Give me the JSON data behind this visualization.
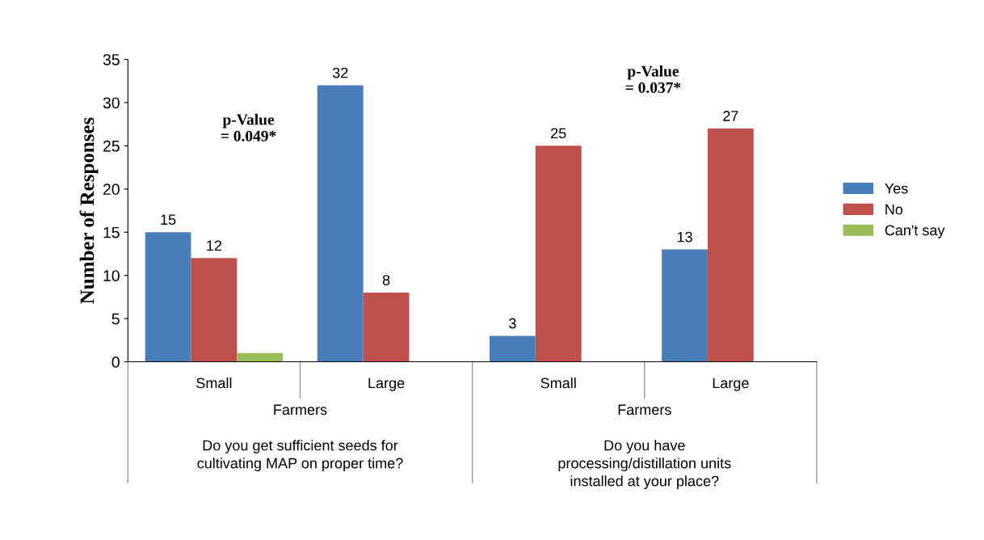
{
  "chart_data": {
    "type": "bar",
    "ylabel": "Number of Responses",
    "categories": [
      "Small",
      "Large",
      "Small",
      "Large"
    ],
    "series": [
      {
        "name": "Yes",
        "color": "#4a7ebb",
        "values": [
          15,
          32,
          3,
          13
        ],
        "value_labels": [
          "15",
          "32",
          "3",
          "13"
        ]
      },
      {
        "name": "No",
        "color": "#c0504d",
        "values": [
          12,
          8,
          25,
          27
        ],
        "value_labels": [
          "12",
          "8",
          "25",
          "27"
        ]
      },
      {
        "name": "Can't say",
        "color": "#9bbb59",
        "values": [
          1,
          0,
          0,
          0
        ],
        "value_labels": [
          null,
          null,
          null,
          null
        ]
      }
    ],
    "ylim": [
      0,
      35
    ],
    "yticks": [
      0,
      5,
      10,
      15,
      20,
      25,
      30,
      35
    ],
    "grid": false,
    "legend": "right",
    "annotations": [
      "p-Value\n= 0.049*",
      "p-Value\n= 0.037*",
      "Farmers\n\nDo you get sufficient seeds for\ncultivating MAP on proper time?",
      "Farmers\n\nDo you have\nprocessing/distillation units\ninstalled at your place?"
    ]
  }
}
